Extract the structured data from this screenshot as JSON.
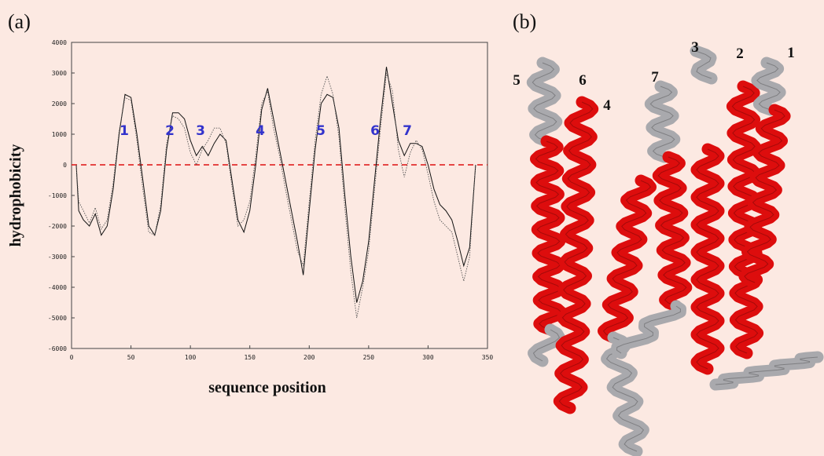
{
  "panel_labels": [
    "(a)",
    "(b)"
  ],
  "chart_data": {
    "type": "line",
    "ylabel": "hydrophobicity",
    "xlabel": "sequence position",
    "x": [
      4,
      6,
      10,
      15,
      20,
      25,
      30,
      35,
      40,
      45,
      50,
      55,
      60,
      65,
      70,
      75,
      80,
      85,
      90,
      95,
      100,
      105,
      110,
      115,
      120,
      125,
      130,
      135,
      140,
      145,
      150,
      155,
      160,
      165,
      170,
      175,
      180,
      185,
      190,
      195,
      200,
      205,
      210,
      215,
      220,
      225,
      230,
      235,
      240,
      245,
      250,
      255,
      260,
      265,
      270,
      275,
      280,
      285,
      290,
      295,
      300,
      305,
      310,
      315,
      320,
      325,
      330,
      335,
      340
    ],
    "series": [
      {
        "color": "#111111",
        "style": "solid",
        "values": [
          0,
          -1500,
          -1800,
          -2000,
          -1600,
          -2300,
          -2000,
          -800,
          1000,
          2300,
          2200,
          1000,
          -500,
          -2000,
          -2300,
          -1500,
          500,
          1700,
          1700,
          1500,
          800,
          300,
          600,
          300,
          700,
          1000,
          800,
          -500,
          -1800,
          -2200,
          -1500,
          0,
          1800,
          2500,
          1500,
          500,
          -500,
          -1500,
          -2500,
          -3600,
          -1500,
          500,
          2000,
          2300,
          2200,
          1200,
          -1000,
          -3000,
          -4500,
          -3800,
          -2500,
          -500,
          1500,
          3200,
          2000,
          800,
          300,
          700,
          700,
          600,
          0,
          -800,
          -1300,
          -1500,
          -1800,
          -2500,
          -3300,
          -2700,
          0
        ]
      },
      {
        "color": "#555555",
        "style": "dotted",
        "values": [
          0,
          -1200,
          -1500,
          -1900,
          -1400,
          -2100,
          -1800,
          -600,
          1100,
          2200,
          2100,
          800,
          -800,
          -2200,
          -2300,
          -1300,
          700,
          1600,
          1500,
          1200,
          400,
          0,
          500,
          800,
          1200,
          1200,
          700,
          -700,
          -2000,
          -1800,
          -1200,
          300,
          2000,
          2400,
          1200,
          300,
          -800,
          -1800,
          -2800,
          -3300,
          -1200,
          800,
          2300,
          2900,
          2300,
          900,
          -1400,
          -3500,
          -5000,
          -4000,
          -2800,
          -800,
          1200,
          3000,
          2400,
          500,
          -400,
          400,
          800,
          500,
          -300,
          -1200,
          -1800,
          -2000,
          -2200,
          -3000,
          -3800,
          -3000,
          0
        ]
      }
    ],
    "reference_line": {
      "value": 0,
      "color": "#dd1111"
    },
    "annotations": [
      "1",
      "2",
      "3",
      "4",
      "5",
      "6",
      "7"
    ],
    "xlim": [
      0,
      350
    ],
    "xticks": [
      0,
      50,
      100,
      150,
      200,
      250,
      300,
      350
    ],
    "ylim": [
      -6000,
      4000
    ],
    "yticks": [
      -6000,
      -5000,
      -4000,
      -3000,
      -2000,
      -1000,
      0,
      1000,
      2000,
      3000,
      4000
    ]
  },
  "structure": {
    "helix_labels": [
      "5",
      "6",
      "4",
      "7",
      "3",
      "2",
      "1"
    ]
  }
}
